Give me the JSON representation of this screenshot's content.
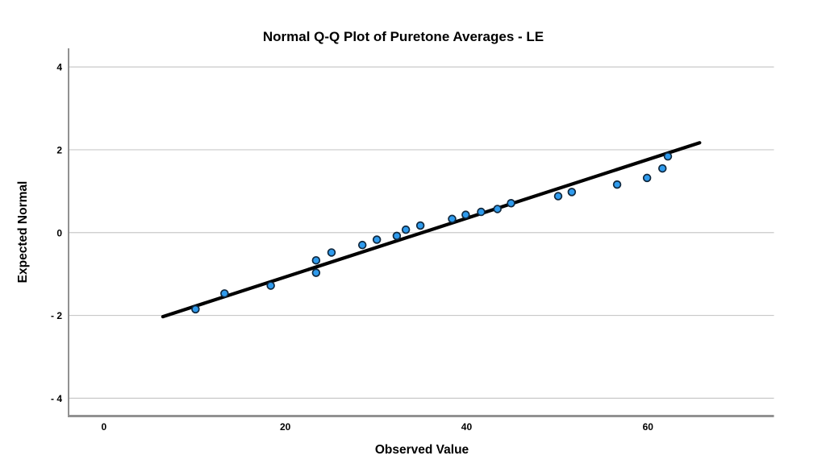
{
  "page": {
    "background": "#ffffff"
  },
  "chart_data": {
    "type": "scatter",
    "variant": "normal-qq-plot",
    "title": "Normal Q-Q Plot of Puretone Averages - LE",
    "xlabel": "Observed Value",
    "ylabel": "Expected Normal",
    "xlim": [
      -3.9,
      73.9
    ],
    "ylim": [
      -4.43,
      4.45
    ],
    "grid": "horizontal-only",
    "legend": "none",
    "x_ticks": [
      {
        "value": 0,
        "label": "0"
      },
      {
        "value": 20,
        "label": "20"
      },
      {
        "value": 40,
        "label": "40"
      },
      {
        "value": 60,
        "label": "60"
      }
    ],
    "y_ticks": [
      {
        "value": 4,
        "label": "4"
      },
      {
        "value": 2,
        "label": "2"
      },
      {
        "value": 0,
        "label": "0"
      },
      {
        "value": -2,
        "label": "- 2"
      },
      {
        "value": -4,
        "label": "- 4"
      }
    ],
    "points": [
      [
        10.1,
        -1.85
      ],
      [
        13.3,
        -1.47
      ],
      [
        18.4,
        -1.28
      ],
      [
        23.4,
        -0.97
      ],
      [
        23.4,
        -0.67
      ],
      [
        25.1,
        -0.48
      ],
      [
        28.5,
        -0.3
      ],
      [
        30.1,
        -0.17
      ],
      [
        32.3,
        -0.08
      ],
      [
        33.3,
        0.07
      ],
      [
        34.9,
        0.17
      ],
      [
        38.4,
        0.33
      ],
      [
        39.9,
        0.43
      ],
      [
        41.6,
        0.5
      ],
      [
        43.4,
        0.57
      ],
      [
        44.9,
        0.71
      ],
      [
        50.1,
        0.88
      ],
      [
        51.6,
        0.98
      ],
      [
        56.6,
        1.16
      ],
      [
        59.9,
        1.32
      ],
      [
        61.6,
        1.55
      ],
      [
        62.2,
        1.84
      ]
    ],
    "reference_line": {
      "x1": 6.5,
      "y1": -2.03,
      "x2": 65.7,
      "y2": 2.17
    },
    "colors": {
      "point_fill": "#2f9bed",
      "point_stroke": "#10283e",
      "reference_line": "#000000",
      "gridline": "#c9c9c9",
      "axis_spine": "#919191",
      "text": "#000000"
    }
  }
}
